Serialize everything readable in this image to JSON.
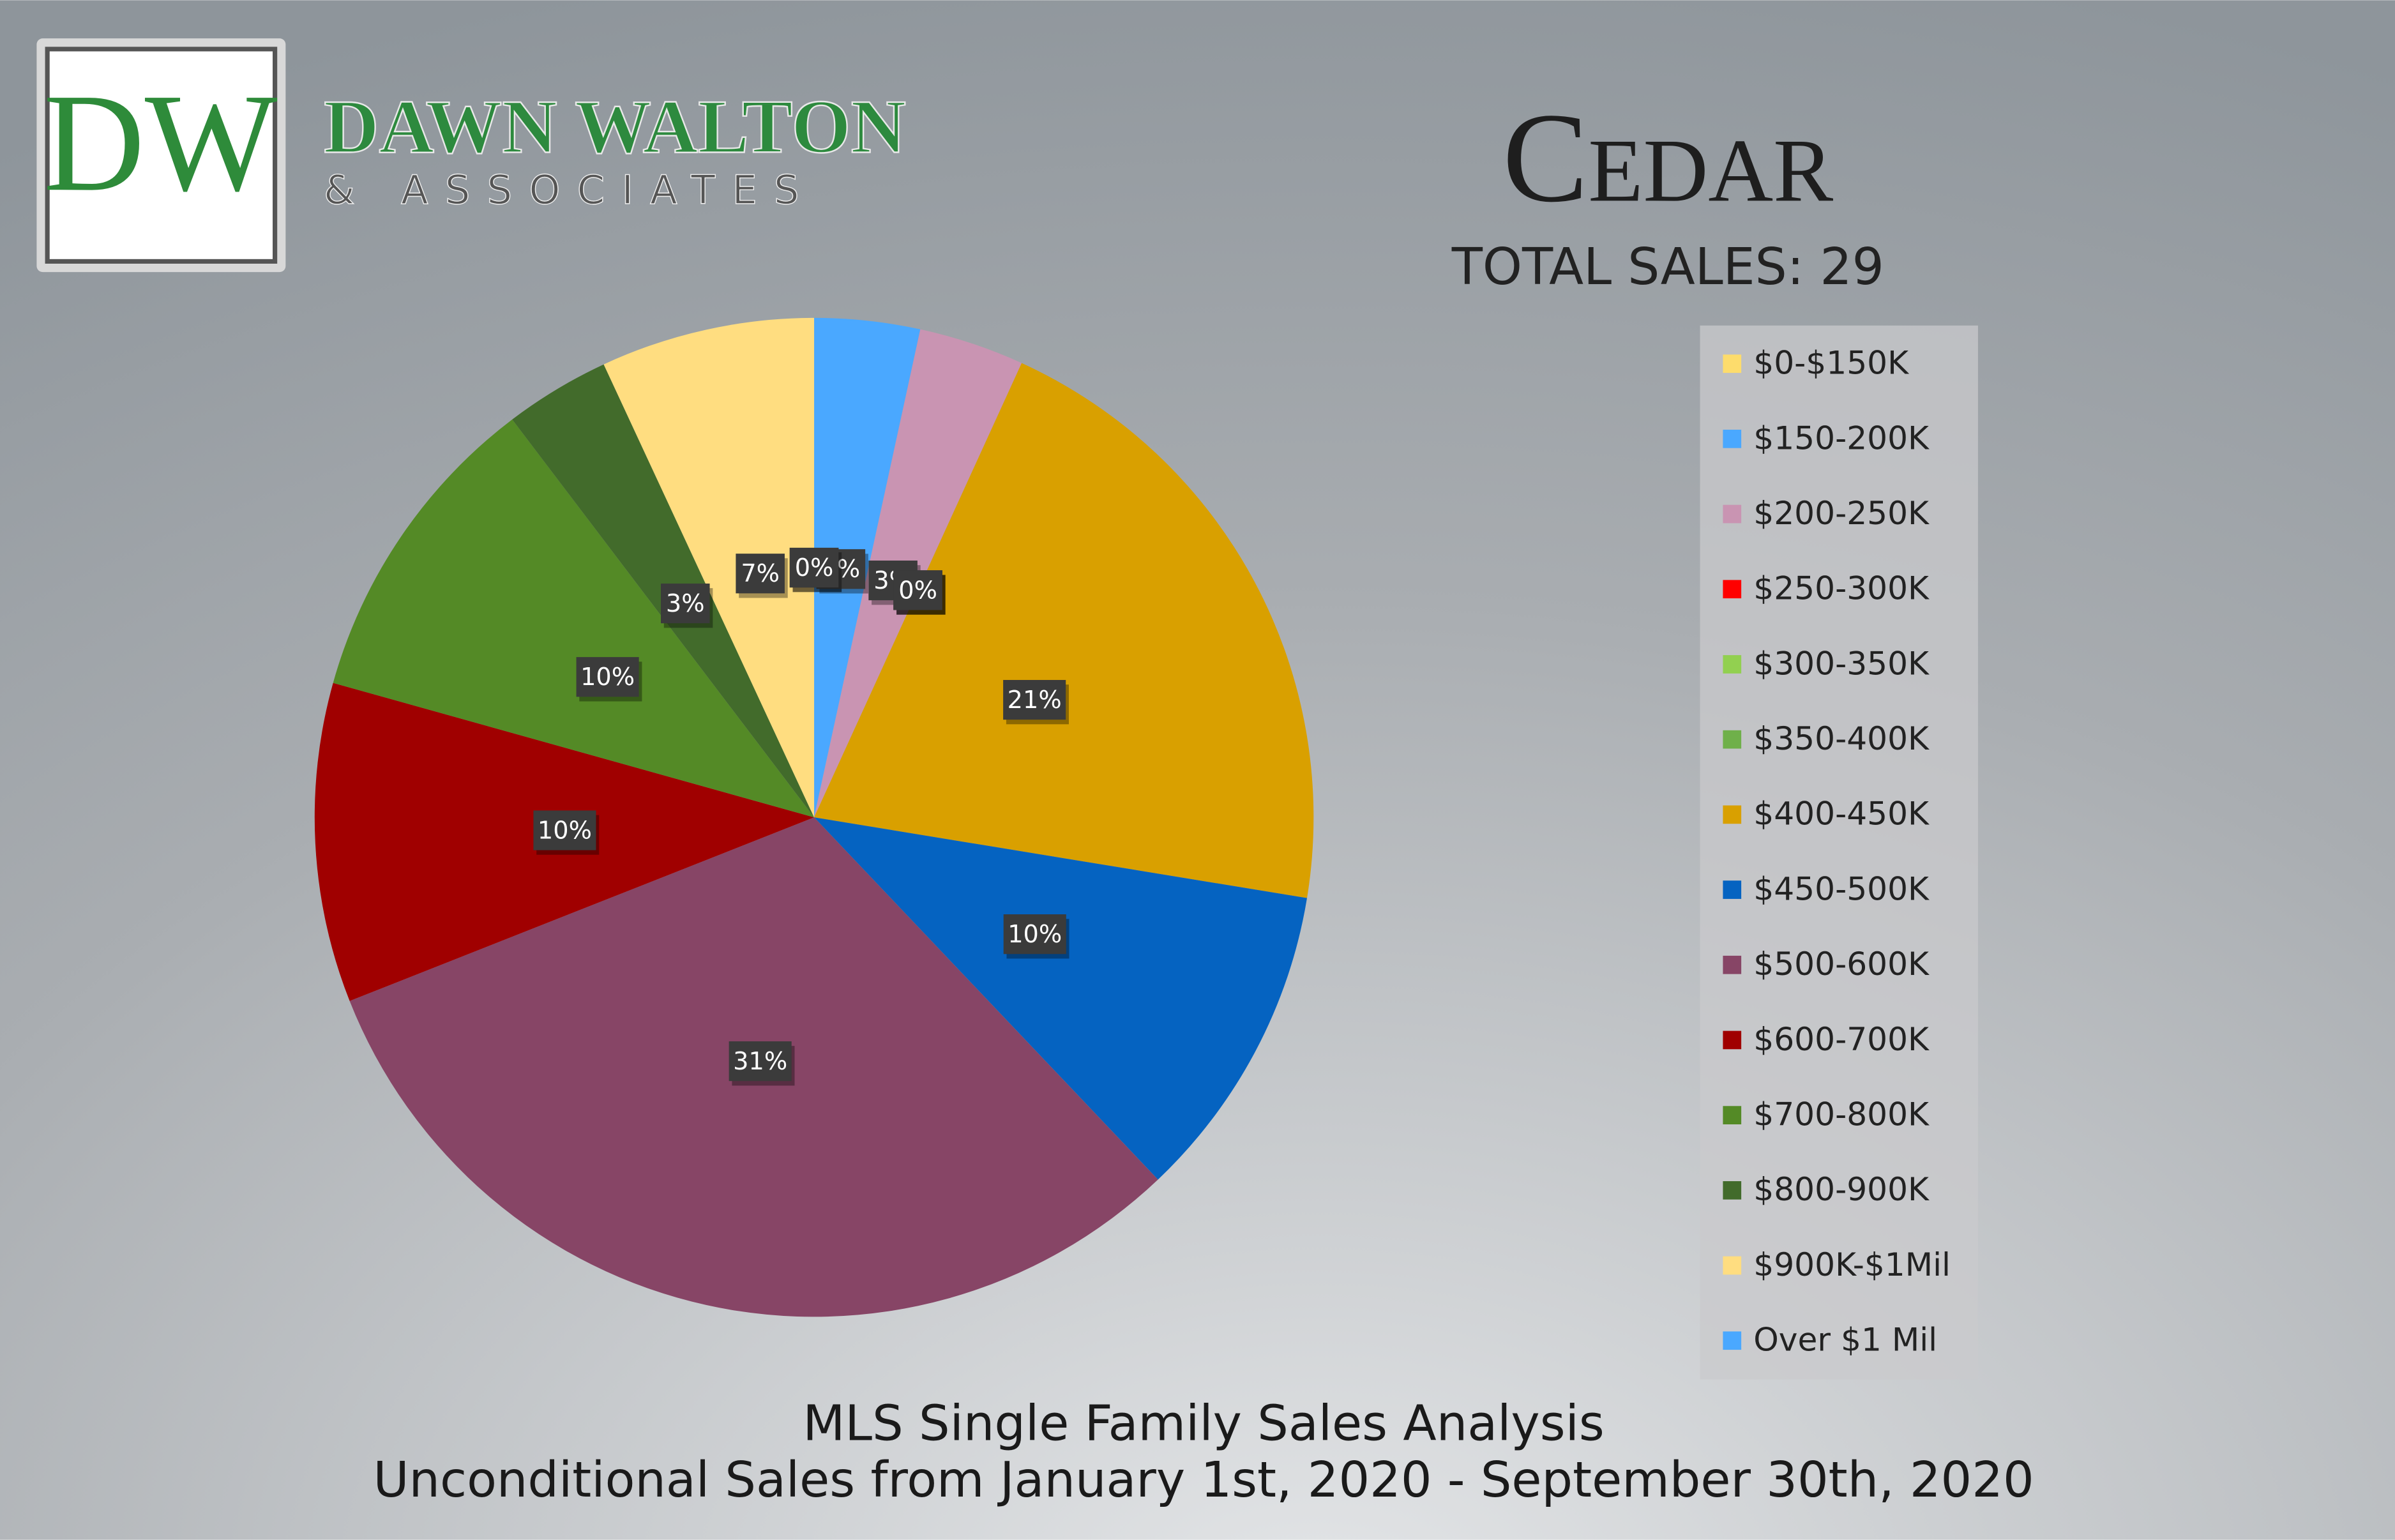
{
  "logo": {
    "initials": "DW",
    "name": "DAWN WALTON",
    "tagline": "& ASSOCIATES"
  },
  "chart_data": {
    "type": "pie",
    "title": "Cedar",
    "subtitle": "TOTAL SALES: 29",
    "footer": [
      "MLS Single Family Sales Analysis",
      "Unconditional Sales from January 1st, 2020 - September 30th, 2020"
    ],
    "categories": [
      "$0-$150K",
      "$150-200K",
      "$200-250K",
      "$250-300K",
      "$300-350K",
      "$350-400K",
      "$400-450K",
      "$450-500K",
      "$500-600K",
      "$600-700K",
      "$700-800K",
      "$800-900K",
      "$900K-$1Mil",
      "Over $1 Mil"
    ],
    "values": [
      0,
      3.4,
      3.4,
      0,
      0,
      0,
      20.7,
      10.3,
      31.0,
      10.3,
      10.3,
      3.4,
      6.9,
      0
    ],
    "value_labels": [
      "0%",
      "3%",
      "3%",
      "0%",
      "0%",
      "0%",
      "21%",
      "10%",
      "31%",
      "10%",
      "10%",
      "3%",
      "7%",
      "0%"
    ],
    "colors": [
      "#fddc6c",
      "#4aa8ff",
      "#c994b2",
      "#ff0000",
      "#92d050",
      "#6fb04a",
      "#d9a000",
      "#0563c1",
      "#874566",
      "#a00000",
      "#548a26",
      "#426b2b",
      "#ffdd80",
      "#4aa8ff"
    ],
    "legend": "right"
  }
}
